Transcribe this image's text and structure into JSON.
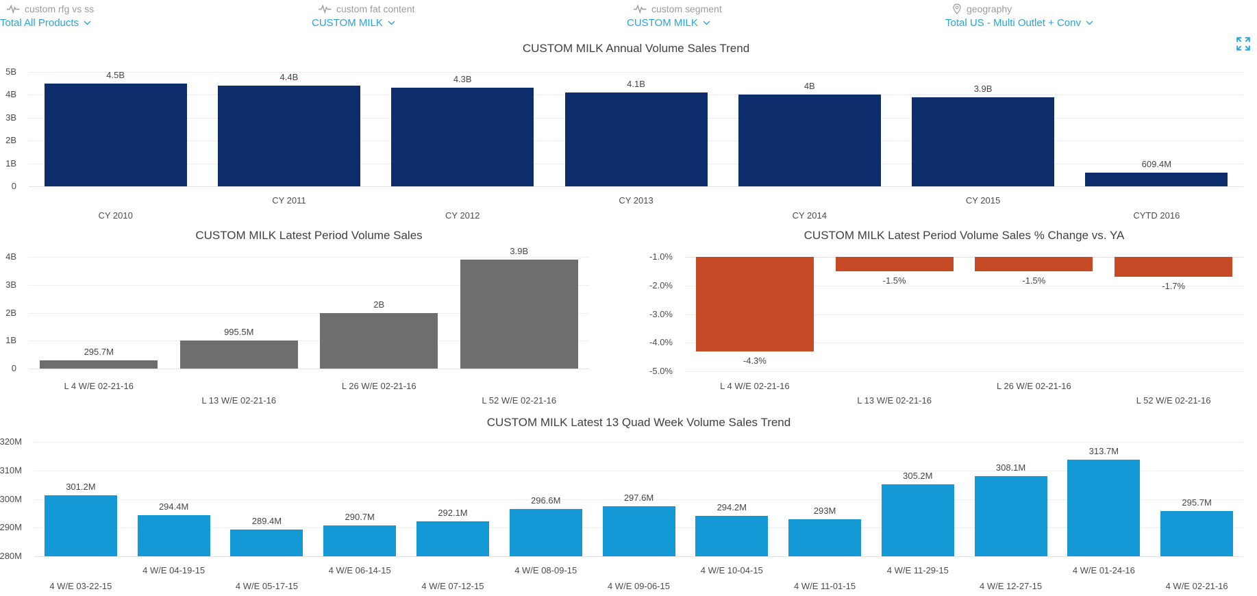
{
  "filters": [
    {
      "icon": "pulse-icon",
      "label": "custom rfg vs ss",
      "value": "Total All Products"
    },
    {
      "icon": "pulse-icon",
      "label": "custom fat content",
      "value": "CUSTOM MILK"
    },
    {
      "icon": "pulse-icon",
      "label": "custom segment",
      "value": "CUSTOM MILK"
    },
    {
      "icon": "location-pin-icon",
      "label": "geography",
      "value": "Total US - Multi Outlet + Conv"
    }
  ],
  "colors": {
    "accent_blue": "#2aa3dc",
    "navy_bar": "#0d2d6d",
    "gray_bar": "#6e6e6e",
    "orange_bar": "#c74a26",
    "light_blue_bar": "#1499d6",
    "label_gray": "#9b9b9b",
    "text_dark": "#3f3f3f",
    "grid": "#efefef"
  },
  "chart_data": [
    {
      "type": "bar",
      "title": "CUSTOM MILK Annual Volume Sales Trend",
      "categories": [
        "CY 2010",
        "CY 2011",
        "CY 2012",
        "CY 2013",
        "CY 2014",
        "CY 2015",
        "CYTD 2016"
      ],
      "values": [
        4.5,
        4.4,
        4.3,
        4.1,
        4.0,
        3.9,
        0.6094
      ],
      "value_labels": [
        "4.5B",
        "4.4B",
        "4.3B",
        "4.1B",
        "4B",
        "3.9B",
        "609.4M"
      ],
      "unit": "B",
      "ylim": [
        0,
        5
      ],
      "yticks": [
        {
          "v": 5,
          "label": "5B"
        },
        {
          "v": 4,
          "label": "4B"
        },
        {
          "v": 3,
          "label": "3B"
        },
        {
          "v": 2,
          "label": "2B"
        },
        {
          "v": 1,
          "label": "1B"
        },
        {
          "v": 0,
          "label": "0"
        }
      ],
      "bar_color": "#0d2d6d",
      "baseline": "bottom",
      "stagger_start": "lower",
      "grid": true,
      "legend": "none"
    },
    {
      "type": "bar",
      "title": "CUSTOM MILK Latest Period Volume Sales",
      "categories": [
        "L 4 W/E 02-21-16",
        "L 13 W/E 02-21-16",
        "L 26 W/E 02-21-16",
        "L 52 W/E 02-21-16"
      ],
      "values": [
        0.2957,
        0.9955,
        2.0,
        3.9
      ],
      "value_labels": [
        "295.7M",
        "995.5M",
        "2B",
        "3.9B"
      ],
      "unit": "B",
      "ylim": [
        0,
        4
      ],
      "yticks": [
        {
          "v": 4,
          "label": "4B"
        },
        {
          "v": 3,
          "label": "3B"
        },
        {
          "v": 2,
          "label": "2B"
        },
        {
          "v": 1,
          "label": "1B"
        },
        {
          "v": 0,
          "label": "0"
        }
      ],
      "bar_color": "#6e6e6e",
      "baseline": "bottom",
      "stagger_start": "upper",
      "grid": true,
      "legend": "none"
    },
    {
      "type": "bar",
      "title": "CUSTOM MILK Latest Period Volume Sales % Change vs. YA",
      "categories": [
        "L 4 W/E 02-21-16",
        "L 13 W/E 02-21-16",
        "L 26 W/E 02-21-16",
        "L 52 W/E 02-21-16"
      ],
      "values": [
        -4.3,
        -1.5,
        -1.5,
        -1.7
      ],
      "value_labels": [
        "-4.3%",
        "-1.5%",
        "-1.5%",
        "-1.7%"
      ],
      "unit": "%",
      "ylim": [
        -5,
        -1
      ],
      "yticks": [
        {
          "v": -1,
          "label": "-1.0%"
        },
        {
          "v": -2,
          "label": "-2.0%"
        },
        {
          "v": -3,
          "label": "-3.0%"
        },
        {
          "v": -4,
          "label": "-4.0%"
        },
        {
          "v": -5,
          "label": "-5.0%"
        }
      ],
      "bar_color": "#c74a26",
      "baseline": "top",
      "stagger_start": "upper",
      "grid": true,
      "legend": "none"
    },
    {
      "type": "bar",
      "title": "CUSTOM MILK Latest 13 Quad Week Volume Sales Trend",
      "categories": [
        "4 W/E 03-22-15",
        "4 W/E 04-19-15",
        "4 W/E 05-17-15",
        "4 W/E 06-14-15",
        "4 W/E 07-12-15",
        "4 W/E 08-09-15",
        "4 W/E 09-06-15",
        "4 W/E 10-04-15",
        "4 W/E 11-01-15",
        "4 W/E 11-29-15",
        "4 W/E 12-27-15",
        "4 W/E 01-24-16",
        "4 W/E 02-21-16"
      ],
      "values": [
        301.2,
        294.4,
        289.4,
        290.7,
        292.1,
        296.6,
        297.6,
        294.2,
        293,
        305.2,
        308.1,
        313.7,
        295.7
      ],
      "value_labels": [
        "301.2M",
        "294.4M",
        "289.4M",
        "290.7M",
        "292.1M",
        "296.6M",
        "297.6M",
        "294.2M",
        "293M",
        "305.2M",
        "308.1M",
        "313.7M",
        "295.7M"
      ],
      "unit": "M",
      "ylim": [
        280,
        320
      ],
      "yticks": [
        {
          "v": 320,
          "label": "320M"
        },
        {
          "v": 310,
          "label": "310M"
        },
        {
          "v": 300,
          "label": "300M"
        },
        {
          "v": 290,
          "label": "290M"
        },
        {
          "v": 280,
          "label": "280M"
        }
      ],
      "bar_color": "#1499d6",
      "baseline": "bottom",
      "stagger_start": "lower",
      "grid": true,
      "legend": "none"
    }
  ]
}
